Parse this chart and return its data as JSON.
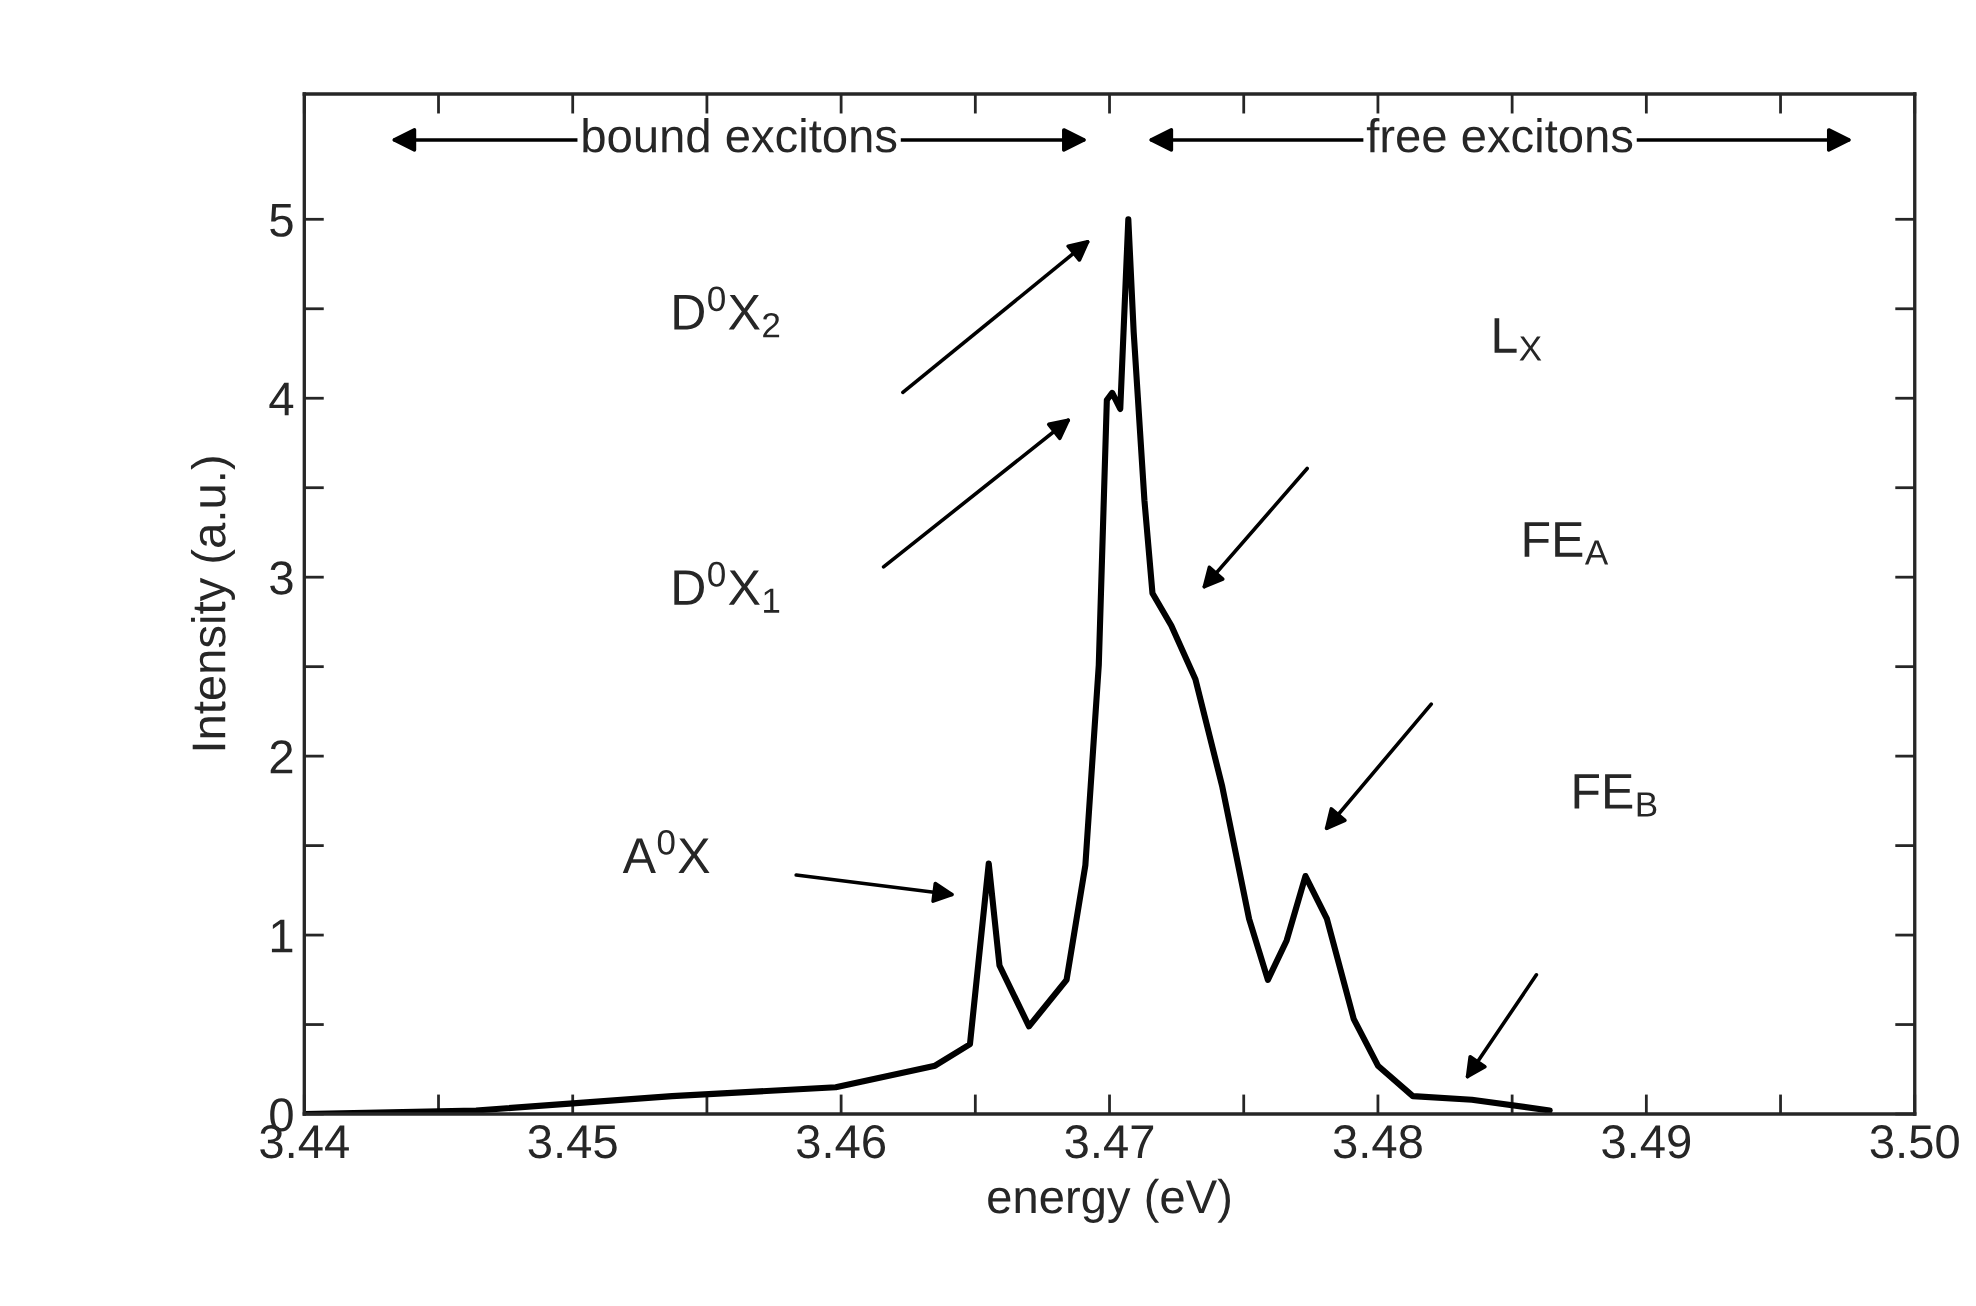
{
  "chart_data": {
    "type": "line",
    "xlabel": "energy (eV)",
    "ylabel": "Intensity (a.u.)",
    "series": [
      {
        "color": "#000000",
        "x": [
          3.44,
          3.4464,
          3.4537,
          3.4598,
          3.4635,
          3.4648,
          3.4655,
          3.4659,
          3.467,
          3.4684,
          3.4691,
          3.4696,
          3.4699,
          3.4701,
          3.4704,
          3.4707,
          3.4709,
          3.4713,
          3.4716,
          3.4723,
          3.4732,
          3.4742,
          3.4752,
          3.4759,
          3.4766,
          3.4773,
          3.4781,
          3.4791,
          3.48,
          3.4813,
          3.4835,
          3.4864
        ],
        "values": [
          0,
          0.02,
          0.1,
          0.15,
          0.27,
          0.39,
          1.4,
          0.83,
          0.49,
          0.75,
          1.39,
          2.51,
          3.99,
          4.03,
          3.94,
          5.0,
          4.37,
          3.43,
          2.91,
          2.73,
          2.43,
          1.83,
          1.09,
          0.75,
          0.97,
          1.33,
          1.09,
          0.53,
          0.27,
          0.1,
          0.08,
          0.02
        ]
      }
    ],
    "xlim": [
      3.44,
      3.5
    ],
    "ylim": [
      0,
      5.7
    ],
    "xticks": [
      3.44,
      {
        "value": 3.445,
        "label": null
      },
      3.45,
      {
        "value": 3.455,
        "label": null
      },
      3.46,
      {
        "value": 3.465,
        "label": null
      },
      3.47,
      {
        "value": 3.475,
        "label": null
      },
      3.48,
      {
        "value": 3.485,
        "label": null
      },
      3.49,
      {
        "value": 3.495,
        "label": null
      },
      "3.50"
    ],
    "yticks": [
      0,
      {
        "value": 0.5,
        "label": null
      },
      1,
      {
        "value": 1.5,
        "label": null
      },
      2,
      {
        "value": 2.5,
        "label": null
      },
      3,
      {
        "value": 3.5,
        "label": null
      },
      4,
      {
        "value": 4.5,
        "label": null
      },
      5
    ],
    "grid": false,
    "legend": false,
    "marker": "none",
    "line_style": "solid",
    "annotations": [
      "bound excitons",
      "free excitons",
      "D$^{0}$X$_{2}$",
      "D$^{0}$X$_{1}$",
      "A$^{0}$X",
      "L$_{X}$",
      "FE$_{A}$",
      "FE$_{B}$"
    ]
  }
}
